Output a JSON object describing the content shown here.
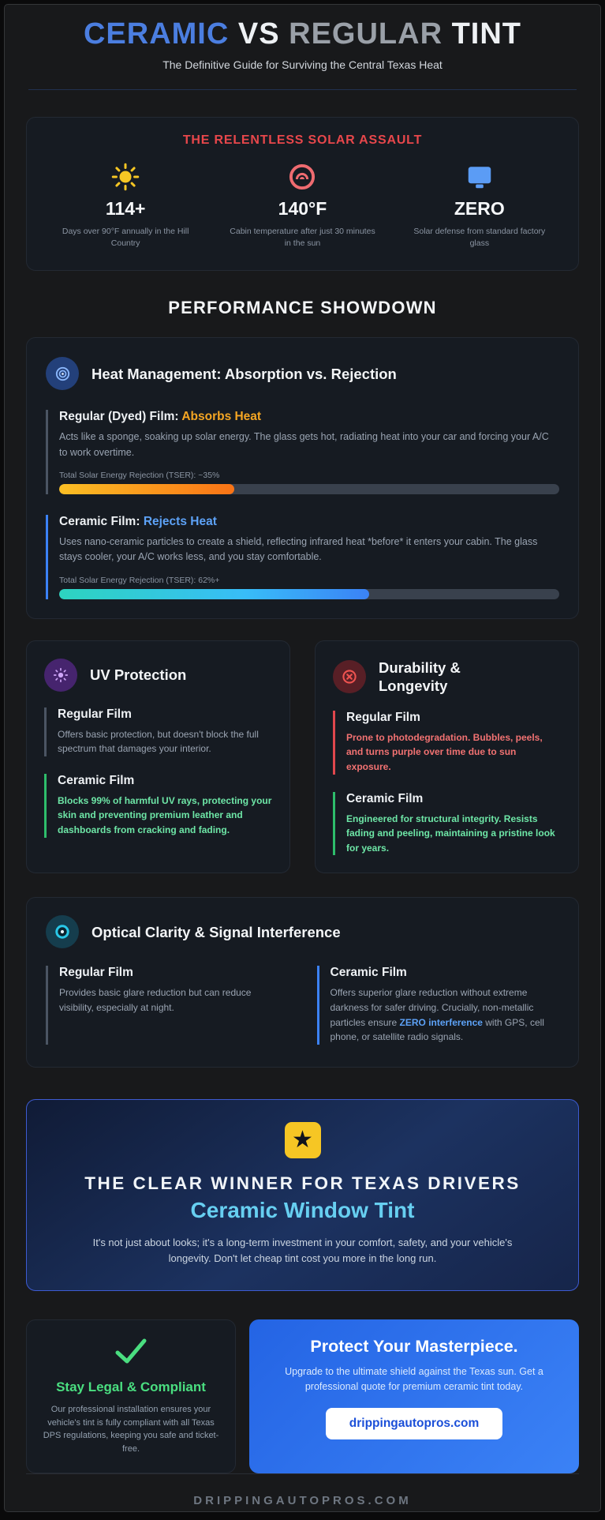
{
  "header": {
    "title_ceramic": "CERAMIC",
    "title_vs": " VS ",
    "title_regular": "REGULAR",
    "title_tint": " TINT",
    "subtitle": "The Definitive Guide for Surviving the Central Texas Heat"
  },
  "solar": {
    "title": "THE RELENTLESS SOLAR ASSAULT",
    "stats": [
      {
        "icon": "sun-icon",
        "value": "114+",
        "caption": "Days over 90°F annually in the Hill Country"
      },
      {
        "icon": "gauge-icon",
        "value": "140°F",
        "caption": "Cabin temperature after just 30 minutes in the sun"
      },
      {
        "icon": "monitor-icon",
        "value": "ZERO",
        "caption": "Solar defense from standard factory glass"
      }
    ]
  },
  "showdown": {
    "title": "PERFORMANCE SHOWDOWN"
  },
  "heat": {
    "title": "Heat Management: Absorption vs. Rejection",
    "regular": {
      "label": "Regular (Dyed) Film: ",
      "verdict": "Absorbs Heat",
      "body": "Acts like a sponge, soaking up solar energy. The glass gets hot, radiating heat into your car and forcing your A/C to work overtime.",
      "tser_label": "Total Solar Energy Rejection (TSER): ~35%",
      "tser_percent": 35
    },
    "ceramic": {
      "label": "Ceramic Film: ",
      "verdict": "Rejects Heat",
      "body": "Uses nano-ceramic particles to create a shield, reflecting infrared heat *before* it enters your cabin. The glass stays cooler, your A/C works less, and you stay comfortable.",
      "tser_label": "Total Solar Energy Rejection (TSER): 62%+",
      "tser_percent": 62
    }
  },
  "uv": {
    "title": "UV Protection",
    "regular": {
      "heading": "Regular Film",
      "body": "Offers basic protection, but doesn't block the full spectrum that damages your interior."
    },
    "ceramic": {
      "heading": "Ceramic Film",
      "body": "Blocks 99% of harmful UV rays, protecting your skin and preventing premium leather and dashboards from cracking and fading."
    }
  },
  "durability": {
    "title": "Durability & Longevity",
    "regular": {
      "heading": "Regular Film",
      "body": "Prone to photodegradation. Bubbles, peels, and turns purple over time due to sun exposure."
    },
    "ceramic": {
      "heading": "Ceramic Film",
      "body": "Engineered for structural integrity. Resists fading and peeling, maintaining a pristine look for years."
    }
  },
  "optical": {
    "title": "Optical Clarity & Signal Interference",
    "regular": {
      "heading": "Regular Film",
      "body": "Provides basic glare reduction but can reduce visibility, especially at night."
    },
    "ceramic": {
      "heading": "Ceramic Film",
      "body_pre": "Offers superior glare reduction without extreme darkness for safer driving. Crucially, non-metallic particles ensure ",
      "body_bold": "ZERO interference",
      "body_post": " with GPS, cell phone, or satellite radio signals."
    }
  },
  "winner": {
    "star": "★",
    "eyebrow": "THE CLEAR WINNER FOR TEXAS DRIVERS",
    "title": "Ceramic Window Tint",
    "body": "It's not just about looks; it's a long-term investment in your comfort, safety, and your vehicle's longevity. Don't let cheap tint cost you more in the long run."
  },
  "legal": {
    "title": "Stay Legal & Compliant",
    "body": "Our professional installation ensures your vehicle's tint is fully compliant with all Texas DPS regulations, keeping you safe and ticket-free."
  },
  "cta": {
    "title": "Protect Your Masterpiece.",
    "body": "Upgrade to the ultimate shield against the Texas sun. Get a professional quote for premium ceramic tint today.",
    "button_label": "drippingautopros.com"
  },
  "footer": {
    "site": "DRIPPINGAUTOPROS.COM"
  },
  "colors": {
    "accent_blue": "#3b82f6",
    "alert_red": "#ef4444",
    "success_green": "#4ade80",
    "warn_amber": "#f59e0b",
    "info_cyan": "#22d3ee",
    "winner_light_blue": "#67cff1"
  }
}
